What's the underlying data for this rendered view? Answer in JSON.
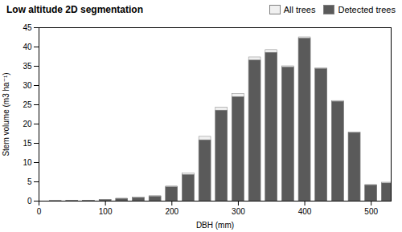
{
  "chart_data": {
    "type": "bar",
    "title": "Low altitude 2D segmentation",
    "xlabel": "DBH (mm)",
    "ylabel": "Stem volume (m3 ha⁻¹)",
    "x": [
      25,
      50,
      75,
      100,
      125,
      150,
      175,
      200,
      225,
      250,
      275,
      300,
      325,
      350,
      375,
      400,
      425,
      450,
      475,
      500,
      525
    ],
    "series": [
      {
        "name": "All trees",
        "color": "#f0f0f0",
        "values": [
          0.05,
          0.1,
          0.15,
          0.35,
          0.65,
          0.9,
          1.3,
          3.8,
          7.2,
          16.7,
          24.3,
          27.8,
          37.3,
          39.2,
          35.0,
          42.5,
          34.5,
          26.0,
          17.8,
          4.2,
          4.8
        ]
      },
      {
        "name": "Detected trees",
        "color": "#5a5a5a",
        "values": [
          0.04,
          0.08,
          0.13,
          0.3,
          0.58,
          0.82,
          1.15,
          3.6,
          6.8,
          15.8,
          23.5,
          27.0,
          36.5,
          38.5,
          34.7,
          42.2,
          34.3,
          25.8,
          17.7,
          4.1,
          4.6
        ]
      }
    ],
    "xlim": [
      0,
      530
    ],
    "ylim": [
      0,
      45
    ],
    "xticks": [
      0,
      100,
      200,
      300,
      400,
      500
    ],
    "yticks": [
      0,
      5,
      10,
      15,
      20,
      25,
      30,
      35,
      40,
      45
    ],
    "legend": "upper right",
    "grid": false
  }
}
